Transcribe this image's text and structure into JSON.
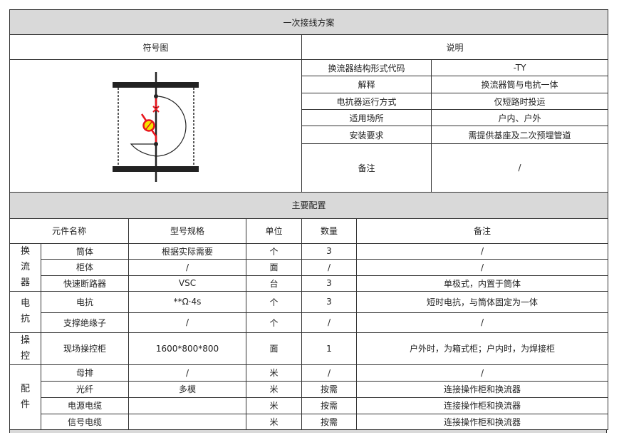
{
  "title": "一次接线方案",
  "symbol_header": "符号图",
  "desc_header": "说明",
  "symbol": {
    "icon": "converter-reactor-symbol",
    "accent": "#e8141c",
    "fill": "#f5e400"
  },
  "description": [
    {
      "label": "换流器结构形式代码",
      "value": "-TY"
    },
    {
      "label": "解释",
      "value": "换流器筒与电抗一体"
    },
    {
      "label": "电抗器运行方式",
      "value": "仅短路时投运"
    },
    {
      "label": "适用场所",
      "value": "户内、户外"
    },
    {
      "label": "安装要求",
      "value": "需提供基座及二次预埋管道"
    },
    {
      "label": "备注",
      "value": "/"
    }
  ],
  "config_title": "主要配置",
  "config_headers": [
    "元件名称",
    "型号规格",
    "单位",
    "数量",
    "备注"
  ],
  "groups": [
    {
      "name": "换流器",
      "items": [
        {
          "name": "筒体",
          "model": "根据实际需要",
          "unit": "个",
          "qty": "3",
          "note": "/"
        },
        {
          "name": "柜体",
          "model": "/",
          "unit": "面",
          "qty": "/",
          "note": "/"
        },
        {
          "name": "快速断路器",
          "model": "VSC",
          "unit": "台",
          "qty": "3",
          "note": "单极式，内置于筒体"
        }
      ]
    },
    {
      "name": "电抗",
      "items": [
        {
          "name": "电抗",
          "model": "**Ω·4s",
          "unit": "个",
          "qty": "3",
          "note": "短时电抗，与筒体固定为一体"
        },
        {
          "name": "支撑绝缘子",
          "model": "/",
          "unit": "个",
          "qty": "/",
          "note": "/"
        }
      ]
    },
    {
      "name": "操控",
      "items": [
        {
          "name": "现场操控柜",
          "model": "1600*800*800",
          "unit": "面",
          "qty": "1",
          "note": "户外时，为箱式柜；户内时，为焊接柜"
        }
      ]
    },
    {
      "name": "配件",
      "items": [
        {
          "name": "母排",
          "model": "/",
          "unit": "米",
          "qty": "/",
          "note": "/"
        },
        {
          "name": "光纤",
          "model": "多模",
          "unit": "米",
          "qty": "按需",
          "note": "连接操作柜和换流器"
        },
        {
          "name": "电源电缆",
          "model": "",
          "unit": "米",
          "qty": "按需",
          "note": "连接操作柜和换流器"
        },
        {
          "name": "信号电缆",
          "model": "",
          "unit": "米",
          "qty": "按需",
          "note": "连接操作柜和换流器"
        }
      ]
    }
  ]
}
